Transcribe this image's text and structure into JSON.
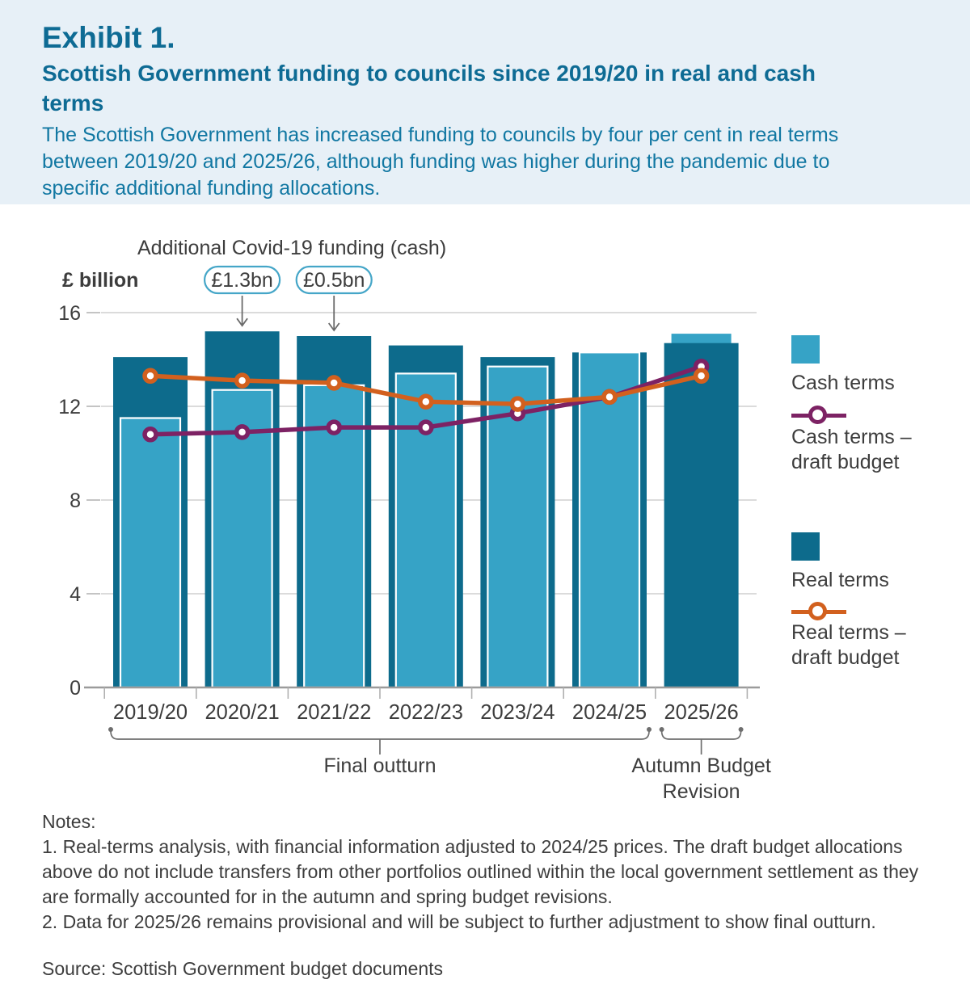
{
  "header": {
    "exhibit_label": "Exhibit 1.",
    "title": "Scottish Government funding to councils since 2019/20 in real and cash terms",
    "subtitle": "The Scottish Government has increased funding to councils by four per cent in real terms between 2019/20 and 2025/26, although funding was higher during the pandemic due to specific additional funding allocations."
  },
  "chart_data": {
    "type": "bar",
    "annotation_title": "Additional Covid-19 funding (cash)",
    "ylabel": "£ billion",
    "ylim": [
      0,
      16
    ],
    "y_ticks": [
      0,
      4,
      8,
      12,
      16
    ],
    "grid": "horizontal",
    "legend_position": "right",
    "categories": [
      "2019/20",
      "2020/21",
      "2021/22",
      "2022/23",
      "2023/24",
      "2024/25",
      "2025/26"
    ],
    "series": [
      {
        "name": "Cash terms",
        "kind": "bar",
        "color": "#36a3c6",
        "values": [
          11.5,
          12.7,
          12.9,
          13.4,
          13.7,
          14.3,
          15.1
        ]
      },
      {
        "name": "Real terms",
        "kind": "bar",
        "color": "#0d6b8c",
        "values": [
          14.1,
          15.2,
          15.0,
          14.6,
          14.1,
          14.3,
          14.7
        ]
      },
      {
        "name": "Cash terms – draft budget",
        "kind": "line",
        "color": "#7d2264",
        "values": [
          10.8,
          10.9,
          11.1,
          11.1,
          11.7,
          12.4,
          13.7
        ]
      },
      {
        "name": "Real terms – draft budget",
        "kind": "line",
        "color": "#d2601e",
        "values": [
          13.3,
          13.1,
          13.0,
          12.2,
          12.1,
          12.4,
          13.3
        ]
      }
    ],
    "front_bar_series": [
      "cash",
      "cash",
      "cash",
      "cash",
      "cash",
      "cash",
      "real"
    ],
    "covid_annotations": [
      {
        "label": "£1.3bn",
        "category": "2020/21"
      },
      {
        "label": "£0.5bn",
        "category": "2021/22"
      }
    ],
    "x_brackets": [
      {
        "lines": [
          "Final outturn"
        ],
        "from": "2019/20",
        "to": "2024/25"
      },
      {
        "lines": [
          "Autumn Budget",
          "Revision"
        ],
        "from": "2025/26",
        "to": "2025/26"
      }
    ],
    "style_colors": {
      "grid": "#cfcfcf",
      "axis": "#9b9b9b",
      "tick": "#b0b0b0",
      "text": "#3d3d3d",
      "pill_border": "#45a6c8",
      "arrow": "#6b6b6b",
      "bracket": "#6e6e6e",
      "bar_outline": "#ffffff"
    }
  },
  "notes": {
    "heading": "Notes:",
    "items": [
      "1. Real-terms analysis, with financial information adjusted to 2024/25 prices. The draft budget allocations above do not include transfers from other portfolios outlined within the local government settlement as they are formally accounted for in the autumn and spring budget revisions.",
      "2. Data for 2025/26 remains provisional and will be subject to further adjustment to show final outturn."
    ]
  },
  "source": "Source: Scottish Government budget documents"
}
